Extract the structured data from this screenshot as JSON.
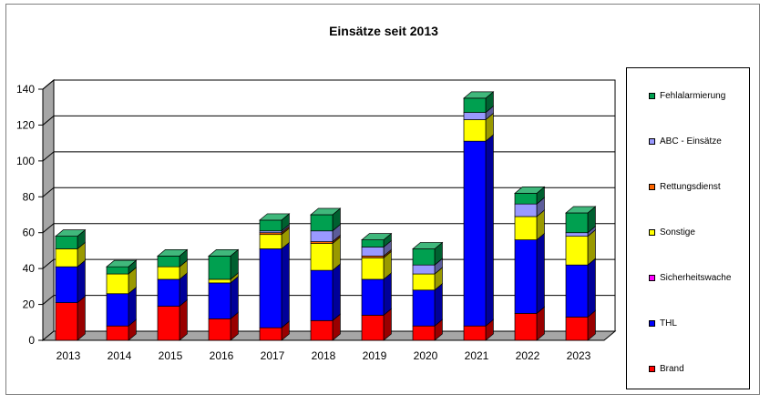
{
  "chart_data": {
    "type": "bar",
    "stacked": true,
    "title": "Einsätze seit 2013",
    "xlabel": "",
    "ylabel": "",
    "ylim": [
      0,
      140
    ],
    "yticks": [
      "0",
      "20",
      "40",
      "60",
      "80",
      "100",
      "120",
      "140"
    ],
    "categories": [
      "2013",
      "2014",
      "2015",
      "2016",
      "2017",
      "2018",
      "2019",
      "2020",
      "2021",
      "2022",
      "2023"
    ],
    "legend_position": "right",
    "grid": true,
    "series": [
      {
        "name": "Brand",
        "color": "#ff0000",
        "values": [
          21,
          8,
          19,
          12,
          7,
          11,
          14,
          8,
          8,
          15,
          13
        ]
      },
      {
        "name": "THL",
        "color": "#0000ff",
        "values": [
          20,
          18,
          15,
          20,
          44,
          28,
          20,
          20,
          103,
          41,
          29
        ]
      },
      {
        "name": "Sicherheitswache",
        "color": "#ff00ff",
        "values": [
          0,
          0,
          0,
          0,
          0,
          0,
          0,
          0,
          0,
          0,
          0
        ]
      },
      {
        "name": "Sonstige",
        "color": "#ffff00",
        "values": [
          10,
          11,
          7,
          2,
          8,
          15,
          12,
          9,
          12,
          13,
          16
        ]
      },
      {
        "name": "Rettungsdienst",
        "color": "#ff6600",
        "values": [
          0,
          0,
          0,
          0,
          1,
          1,
          1,
          0,
          0,
          0,
          0
        ]
      },
      {
        "name": "ABC - Einsätze",
        "color": "#9999ff",
        "values": [
          0,
          0,
          0,
          0,
          1,
          6,
          5,
          5,
          4,
          7,
          2
        ]
      },
      {
        "name": "Fehlalarmierung",
        "color": "#00a050",
        "values": [
          7,
          4,
          6,
          13,
          6,
          9,
          4,
          9,
          8,
          6,
          11
        ]
      }
    ]
  }
}
